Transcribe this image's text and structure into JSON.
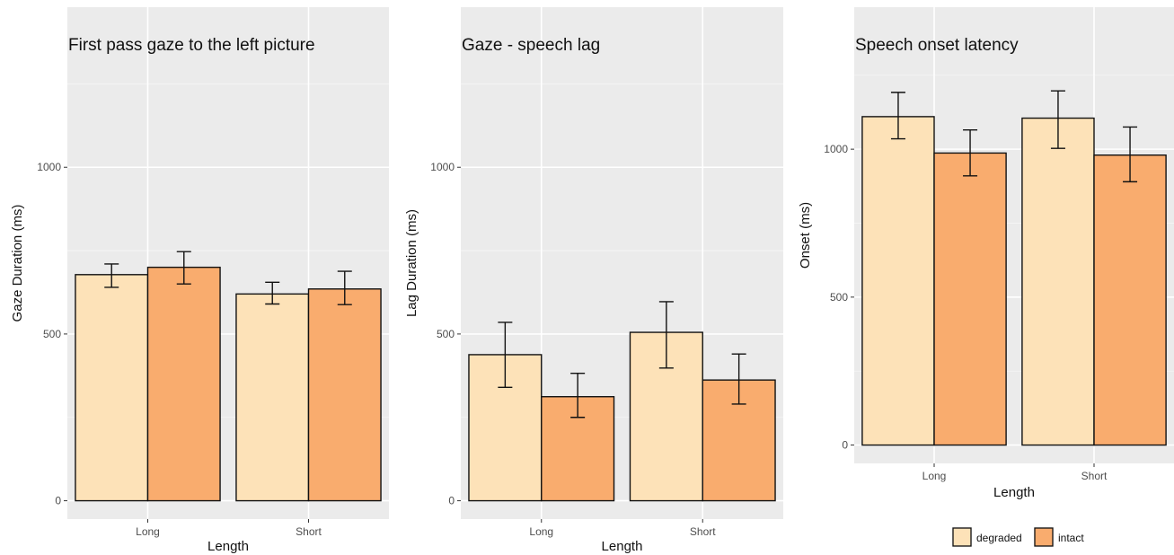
{
  "chart_data": [
    {
      "type": "bar",
      "title": "First pass gaze to the left picture",
      "xlabel": "Length",
      "ylabel": "Gaze Duration (ms)",
      "categories": [
        "Long",
        "Short"
      ],
      "ylim": [
        -55,
        1480
      ],
      "yticks": [
        0,
        500,
        1000
      ],
      "grid": true,
      "series": [
        {
          "name": "degraded",
          "color": "#FDE2B8",
          "values": [
            678,
            620
          ],
          "err_low": [
            640,
            590
          ],
          "err_high": [
            710,
            655
          ]
        },
        {
          "name": "intact",
          "color": "#F9AC6E",
          "values": [
            700,
            635
          ],
          "err_low": [
            650,
            588
          ],
          "err_high": [
            747,
            688
          ]
        }
      ]
    },
    {
      "type": "bar",
      "title": "Gaze - speech lag",
      "xlabel": "Length",
      "ylabel": "Lag Duration (ms)",
      "categories": [
        "Long",
        "Short"
      ],
      "ylim": [
        -55,
        1480
      ],
      "yticks": [
        0,
        500,
        1000
      ],
      "grid": true,
      "series": [
        {
          "name": "degraded",
          "color": "#FDE2B8",
          "values": [
            438,
            505
          ],
          "err_low": [
            340,
            398
          ],
          "err_high": [
            535,
            597
          ]
        },
        {
          "name": "intact",
          "color": "#F9AC6E",
          "values": [
            312,
            362
          ],
          "err_low": [
            250,
            290
          ],
          "err_high": [
            382,
            440
          ]
        }
      ]
    },
    {
      "type": "bar",
      "title": "Speech onset latency",
      "xlabel": "Length",
      "ylabel": "Onset (ms)",
      "categories": [
        "Long",
        "Short"
      ],
      "ylim": [
        -62,
        1480
      ],
      "yticks": [
        0,
        500,
        1000
      ],
      "grid": true,
      "legend_position": "bottom",
      "series": [
        {
          "name": "degraded",
          "color": "#FDE2B8",
          "values": [
            1110,
            1105
          ],
          "err_low": [
            1035,
            1003
          ],
          "err_high": [
            1192,
            1197
          ]
        },
        {
          "name": "intact",
          "color": "#F9AC6E",
          "values": [
            987,
            980
          ],
          "err_low": [
            910,
            890
          ],
          "err_high": [
            1065,
            1075
          ]
        }
      ]
    }
  ],
  "legend": {
    "items": [
      {
        "label": "degraded",
        "color": "#FDE2B8"
      },
      {
        "label": "intact",
        "color": "#F9AC6E"
      }
    ]
  }
}
